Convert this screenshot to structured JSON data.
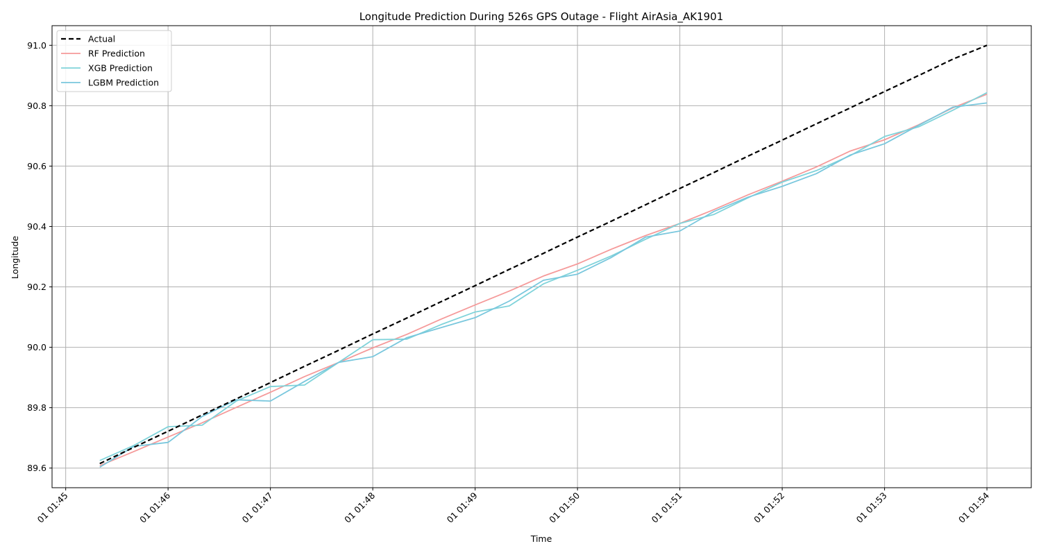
{
  "chart_data": {
    "type": "line",
    "title": "Longitude Prediction During 526s GPS Outage - Flight AirAsia_AK1901",
    "xlabel": "Time",
    "ylabel": "Longitude",
    "xlim": [
      "01 01:44:52",
      "01 01:54:26"
    ],
    "ylim": [
      89.535,
      91.065
    ],
    "x_ticks": [
      "01 01:45",
      "01 01:46",
      "01 01:47",
      "01 01:48",
      "01 01:49",
      "01 01:50",
      "01 01:51",
      "01 01:52",
      "01 01:53",
      "01 01:54"
    ],
    "y_ticks": [
      "89.6",
      "89.8",
      "90.0",
      "90.2",
      "90.4",
      "90.6",
      "90.8",
      "91.0"
    ],
    "grid": true,
    "legend_position": "top-left",
    "x": [
      "01 01:45:20",
      "01 01:45:40",
      "01 01:46:00",
      "01 01:46:20",
      "01 01:46:40",
      "01 01:47:00",
      "01 01:47:20",
      "01 01:47:40",
      "01 01:48:00",
      "01 01:48:20",
      "01 01:48:40",
      "01 01:49:00",
      "01 01:49:20",
      "01 01:49:40",
      "01 01:50:00",
      "01 01:50:20",
      "01 01:50:40",
      "01 01:51:00",
      "01 01:51:20",
      "01 01:51:40",
      "01 01:52:00",
      "01 01:52:20",
      "01 01:52:40",
      "01 01:53:00",
      "01 01:53:20",
      "01 01:53:40",
      "01 01:54:00"
    ],
    "series": [
      {
        "name": "Actual",
        "color": "#000000",
        "dashed": true,
        "width": 2.2,
        "values": [
          89.615,
          89.669,
          89.722,
          89.776,
          89.829,
          89.883,
          89.937,
          89.99,
          90.044,
          90.097,
          90.151,
          90.204,
          90.258,
          90.311,
          90.365,
          90.418,
          90.472,
          90.526,
          90.579,
          90.633,
          90.686,
          90.74,
          90.793,
          90.847,
          90.9,
          90.954,
          91.0
        ]
      },
      {
        "name": "RF Prediction",
        "color": "#f59a9a",
        "dashed": false,
        "width": 1.8,
        "values": [
          89.608,
          89.655,
          89.703,
          89.75,
          89.801,
          89.851,
          89.903,
          89.95,
          89.998,
          90.043,
          90.093,
          90.14,
          90.186,
          90.236,
          90.276,
          90.325,
          90.37,
          90.41,
          90.456,
          90.505,
          90.55,
          90.597,
          90.65,
          90.687,
          90.737,
          90.793,
          90.838
        ]
      },
      {
        "name": "XGB Prediction",
        "color": "#7fd3da",
        "dashed": false,
        "width": 1.8,
        "values": [
          89.625,
          89.675,
          89.737,
          89.742,
          89.822,
          89.87,
          89.875,
          89.95,
          90.025,
          90.027,
          90.075,
          90.117,
          90.137,
          90.21,
          90.255,
          90.303,
          90.358,
          90.41,
          90.44,
          90.495,
          90.547,
          90.585,
          90.635,
          90.698,
          90.73,
          90.785,
          90.843
        ]
      },
      {
        "name": "LGBM Prediction",
        "color": "#79c7dd",
        "dashed": false,
        "width": 1.8,
        "values": [
          89.603,
          89.672,
          89.685,
          89.771,
          89.826,
          89.822,
          89.887,
          89.95,
          89.969,
          90.032,
          90.065,
          90.098,
          90.153,
          90.222,
          90.242,
          90.298,
          90.365,
          90.385,
          90.45,
          90.497,
          90.533,
          90.575,
          90.637,
          90.674,
          90.735,
          90.795,
          90.809
        ]
      }
    ]
  }
}
